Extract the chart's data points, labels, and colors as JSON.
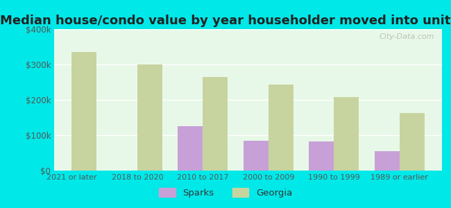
{
  "title": "Median house/condo value by year householder moved into unit",
  "categories": [
    "2021 or later",
    "2018 to 2020",
    "2010 to 2017",
    "2000 to 2009",
    "1990 to 1999",
    "1989 or earlier"
  ],
  "sparks": [
    null,
    null,
    125000,
    85000,
    83000,
    55000
  ],
  "georgia": [
    335000,
    300000,
    265000,
    243000,
    207000,
    163000
  ],
  "sparks_color": "#c8a0d8",
  "georgia_color": "#c8d4a0",
  "plot_bg_top": "#e8f5e8",
  "plot_bg_bottom": "#f5fff5",
  "outer_bg": "#00e8e8",
  "ylim": [
    0,
    400000
  ],
  "yticks": [
    0,
    100000,
    200000,
    300000,
    400000
  ],
  "ytick_labels": [
    "$0",
    "$100k",
    "$200k",
    "$300k",
    "$400k"
  ],
  "watermark": "City-Data.com",
  "legend_sparks": "Sparks",
  "legend_georgia": "Georgia",
  "title_fontsize": 13,
  "bar_width": 0.38
}
